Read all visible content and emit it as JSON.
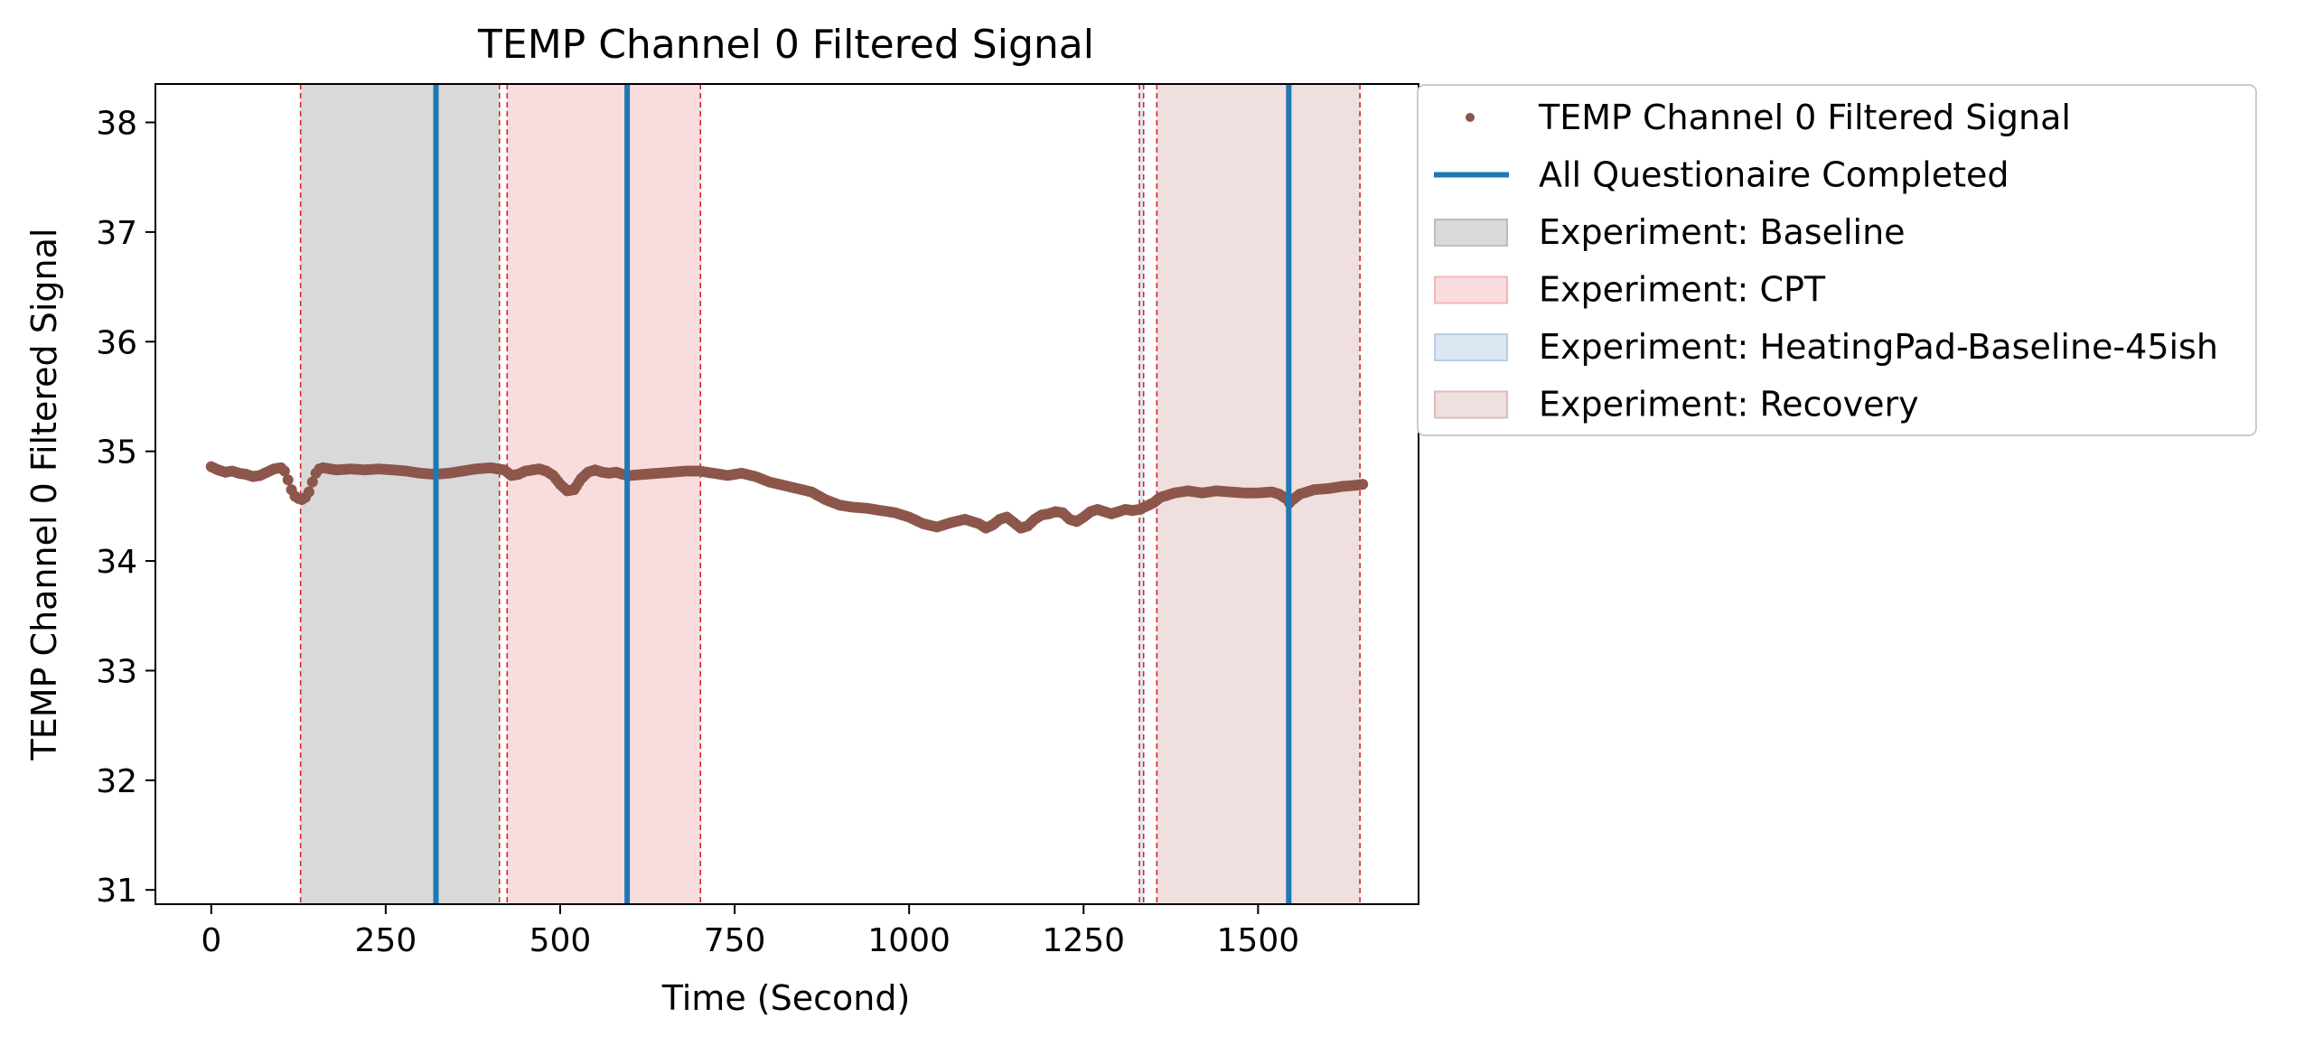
{
  "chart_data": {
    "type": "scatter",
    "title": "TEMP Channel 0 Filtered Signal",
    "xlabel": "Time (Second)",
    "ylabel": "TEMP Channel 0 Filtered Signal",
    "xlim": [
      -80,
      1730
    ],
    "ylim": [
      30.87,
      38.35
    ],
    "xticks": [
      0,
      250,
      500,
      750,
      1000,
      1250,
      1500
    ],
    "xtick_labels": [
      "0",
      "250",
      "500",
      "750",
      "1000",
      "1250",
      "1500"
    ],
    "yticks": [
      31,
      32,
      33,
      34,
      35,
      36,
      37,
      38
    ],
    "ytick_labels": [
      "31",
      "32",
      "33",
      "34",
      "35",
      "36",
      "37",
      "38"
    ],
    "grid": false,
    "legend_position": "outside-right",
    "series": [
      {
        "name": "TEMP Channel 0 Filtered Signal",
        "marker": "dot",
        "color": "#8c564b",
        "x": [
          0,
          10,
          20,
          30,
          40,
          50,
          60,
          70,
          80,
          90,
          100,
          105,
          110,
          115,
          120,
          125,
          130,
          135,
          140,
          145,
          150,
          155,
          160,
          170,
          180,
          200,
          220,
          240,
          260,
          280,
          300,
          320,
          340,
          360,
          380,
          400,
          410,
          420,
          430,
          440,
          450,
          460,
          470,
          480,
          490,
          500,
          510,
          520,
          530,
          540,
          550,
          560,
          570,
          580,
          590,
          600,
          620,
          640,
          660,
          680,
          700,
          720,
          740,
          760,
          780,
          800,
          820,
          840,
          860,
          880,
          900,
          920,
          940,
          960,
          980,
          1000,
          1020,
          1040,
          1060,
          1080,
          1100,
          1110,
          1120,
          1130,
          1140,
          1150,
          1160,
          1170,
          1180,
          1190,
          1200,
          1210,
          1220,
          1230,
          1240,
          1250,
          1260,
          1270,
          1280,
          1290,
          1300,
          1310,
          1320,
          1330,
          1340,
          1350,
          1360,
          1380,
          1400,
          1420,
          1440,
          1460,
          1480,
          1500,
          1520,
          1530,
          1540,
          1545,
          1550,
          1560,
          1570,
          1580,
          1600,
          1620,
          1640,
          1650
        ],
        "y": [
          34.86,
          34.83,
          34.81,
          34.82,
          34.8,
          34.79,
          34.77,
          34.78,
          34.81,
          34.84,
          34.85,
          34.82,
          34.74,
          34.65,
          34.59,
          34.57,
          34.56,
          34.58,
          34.63,
          34.72,
          34.8,
          34.84,
          34.85,
          34.84,
          34.83,
          34.84,
          34.83,
          34.84,
          34.83,
          34.82,
          34.8,
          34.79,
          34.8,
          34.82,
          34.84,
          34.85,
          34.84,
          34.83,
          34.78,
          34.79,
          34.82,
          34.83,
          34.84,
          34.82,
          34.78,
          34.7,
          34.64,
          34.65,
          34.75,
          34.81,
          34.83,
          34.81,
          34.8,
          34.81,
          34.79,
          34.78,
          34.79,
          34.8,
          34.81,
          34.82,
          34.82,
          34.8,
          34.78,
          34.8,
          34.77,
          34.72,
          34.69,
          34.66,
          34.63,
          34.56,
          34.51,
          34.49,
          34.48,
          34.46,
          34.44,
          34.4,
          34.34,
          34.31,
          34.35,
          34.38,
          34.34,
          34.3,
          34.33,
          34.38,
          34.4,
          34.35,
          34.3,
          34.32,
          34.38,
          34.42,
          34.43,
          34.45,
          34.44,
          34.38,
          34.36,
          34.4,
          34.45,
          34.47,
          34.45,
          34.43,
          34.45,
          34.47,
          34.46,
          34.47,
          34.5,
          34.53,
          34.58,
          34.62,
          34.64,
          34.62,
          34.64,
          34.63,
          34.62,
          34.62,
          34.63,
          34.61,
          34.57,
          34.53,
          34.56,
          34.61,
          34.63,
          34.65,
          34.66,
          34.68,
          34.69,
          34.7
        ]
      },
      {
        "name": "All Questionaire Completed",
        "type": "vline",
        "color": "#1f77b4",
        "x": [
          322,
          596,
          1544
        ]
      }
    ],
    "regions": [
      {
        "name": "Experiment: Baseline",
        "color": "#d9d9d9",
        "x0": 128,
        "x1": 413
      },
      {
        "name": "Experiment: CPT",
        "color": "#f9dcde",
        "x0": 424,
        "x1": 701
      },
      {
        "name": "Experiment: HeatingPad-Baseline-45ish",
        "color": "#dbe8f4",
        "x0": 1330,
        "x1": 1336
      },
      {
        "name": "Experiment: Recovery",
        "color": "#efdfde",
        "x0": 1355,
        "x1": 1646
      }
    ],
    "region_boundaries": [
      128,
      413,
      424,
      701,
      1330,
      1336,
      1355,
      1646
    ],
    "boundary_color": "#d62728"
  }
}
